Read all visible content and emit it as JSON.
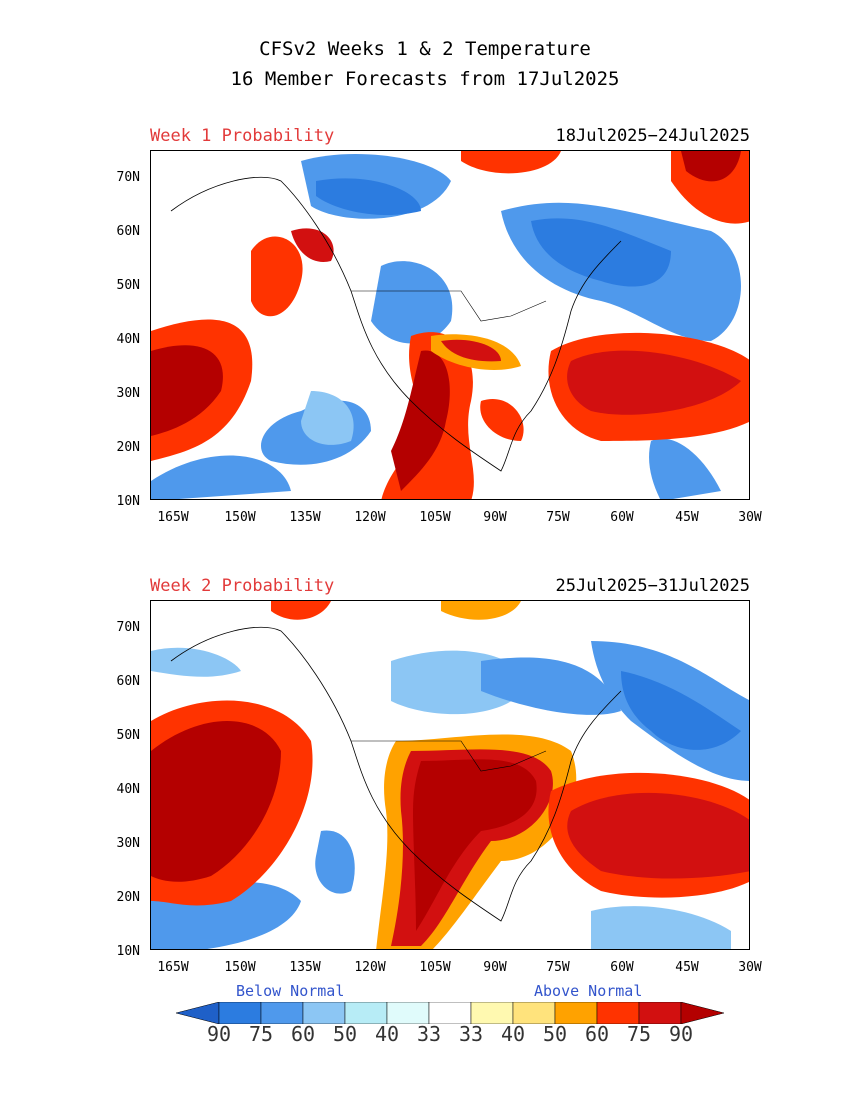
{
  "title": {
    "line1": "CFSv2 Weeks 1 & 2 Temperature",
    "line2": "16 Member Forecasts from 17Jul2025"
  },
  "panels": [
    {
      "label": "Week 1 Probability",
      "dates": "18Jul2025−24Jul2025"
    },
    {
      "label": "Week 2 Probability",
      "dates": "25Jul2025−31Jul2025"
    }
  ],
  "y_ticks": [
    "70N",
    "60N",
    "50N",
    "40N",
    "30N",
    "20N",
    "10N"
  ],
  "x_ticks": [
    "165W",
    "150W",
    "135W",
    "120W",
    "105W",
    "90W",
    "75W",
    "60W",
    "45W",
    "30W"
  ],
  "legend": {
    "below_label": "Below Normal",
    "above_label": "Above Normal",
    "values": [
      "90",
      "75",
      "60",
      "50",
      "40",
      "33",
      "33",
      "40",
      "50",
      "60",
      "75",
      "90"
    ],
    "colors": [
      "#1f60c8",
      "#2c7ce0",
      "#4f99ec",
      "#8cc6f4",
      "#b7ecf6",
      "#e0fbfb",
      "#ffffff",
      "#fff9b0",
      "#ffe37c",
      "#ffa200",
      "#ff3300",
      "#d21010",
      "#b40000"
    ]
  }
}
